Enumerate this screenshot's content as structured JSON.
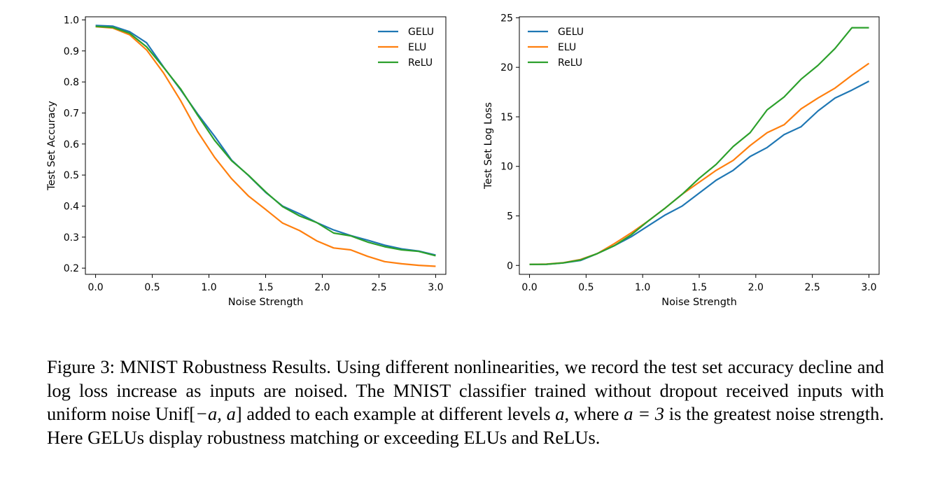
{
  "colors": {
    "GELU": "#1f77b4",
    "ELU": "#ff7f0e",
    "ReLU": "#2ca02c"
  },
  "chart_data": [
    {
      "type": "line",
      "xlabel": "Noise Strength",
      "ylabel": "Test Set Accuracy",
      "xlim": [
        -0.09,
        3.09
      ],
      "ylim": [
        0.18,
        1.01
      ],
      "xticks": [
        "0.0",
        "0.5",
        "1.0",
        "1.5",
        "2.0",
        "2.5",
        "3.0"
      ],
      "yticks": [
        "0.2",
        "0.3",
        "0.4",
        "0.5",
        "0.6",
        "0.7",
        "0.8",
        "0.9",
        "1.0"
      ],
      "legend_position": "top-right",
      "grid": false,
      "x": [
        0.0,
        0.15,
        0.3,
        0.45,
        0.6,
        0.75,
        0.9,
        1.05,
        1.2,
        1.35,
        1.5,
        1.65,
        1.8,
        1.95,
        2.1,
        2.25,
        2.4,
        2.55,
        2.7,
        2.85,
        3.0
      ],
      "series": [
        {
          "name": "GELU",
          "values": [
            0.982,
            0.98,
            0.962,
            0.926,
            0.848,
            0.775,
            0.697,
            0.625,
            0.548,
            0.498,
            0.444,
            0.4,
            0.375,
            0.347,
            0.323,
            0.305,
            0.29,
            0.274,
            0.262,
            0.255,
            0.242
          ]
        },
        {
          "name": "ELU",
          "values": [
            0.978,
            0.974,
            0.952,
            0.903,
            0.829,
            0.74,
            0.64,
            0.557,
            0.488,
            0.432,
            0.389,
            0.345,
            0.321,
            0.288,
            0.265,
            0.259,
            0.238,
            0.221,
            0.214,
            0.209,
            0.206
          ]
        },
        {
          "name": "ReLU",
          "values": [
            0.979,
            0.976,
            0.957,
            0.913,
            0.847,
            0.778,
            0.693,
            0.612,
            0.546,
            0.499,
            0.446,
            0.398,
            0.368,
            0.347,
            0.313,
            0.304,
            0.284,
            0.269,
            0.259,
            0.254,
            0.24
          ]
        }
      ]
    },
    {
      "type": "line",
      "xlabel": "Noise Strength",
      "ylabel": "Test Set Log Loss",
      "xlim": [
        -0.09,
        3.09
      ],
      "ylim": [
        -0.9,
        25.1
      ],
      "xticks": [
        "0.0",
        "0.5",
        "1.0",
        "1.5",
        "2.0",
        "2.5",
        "3.0"
      ],
      "yticks": [
        "0",
        "5",
        "10",
        "15",
        "20",
        "25"
      ],
      "legend_position": "top-left",
      "grid": false,
      "x": [
        0.0,
        0.15,
        0.3,
        0.45,
        0.6,
        0.75,
        0.9,
        1.05,
        1.2,
        1.35,
        1.5,
        1.65,
        1.8,
        1.95,
        2.1,
        2.25,
        2.4,
        2.55,
        2.7,
        2.85,
        3.0
      ],
      "series": [
        {
          "name": "GELU",
          "values": [
            0.1,
            0.12,
            0.25,
            0.5,
            1.2,
            2.0,
            2.9,
            4.0,
            5.1,
            6.0,
            7.3,
            8.6,
            9.6,
            11.0,
            11.9,
            13.2,
            14.0,
            15.6,
            16.9,
            17.7,
            18.6
          ]
        },
        {
          "name": "ELU",
          "values": [
            0.1,
            0.13,
            0.28,
            0.6,
            1.2,
            2.2,
            3.3,
            4.5,
            5.8,
            7.2,
            8.4,
            9.6,
            10.6,
            12.1,
            13.4,
            14.2,
            15.8,
            16.9,
            17.9,
            19.2,
            20.4
          ]
        },
        {
          "name": "ReLU",
          "values": [
            0.1,
            0.12,
            0.26,
            0.55,
            1.2,
            2.0,
            3.1,
            4.5,
            5.8,
            7.2,
            8.8,
            10.2,
            12.0,
            13.4,
            15.7,
            17.0,
            18.8,
            20.2,
            21.9,
            24.0,
            24.0
          ]
        }
      ]
    }
  ],
  "caption": {
    "label": "Figure 3:",
    "text_a": " MNIST Robustness Results. Using different nonlinearities, we record the test set accuracy decline and log loss increase as inputs are noised. The MNIST classifier trained without dropout received inputs with uniform noise Unif[",
    "math_interval": "−a, a",
    "text_b": "] added to each example at different levels ",
    "math_a": "a",
    "text_c": ", where ",
    "math_eq": "a = 3",
    "text_d": " is the greatest noise strength. Here GELUs display robustness matching or exceeding ELUs and ReLUs."
  }
}
